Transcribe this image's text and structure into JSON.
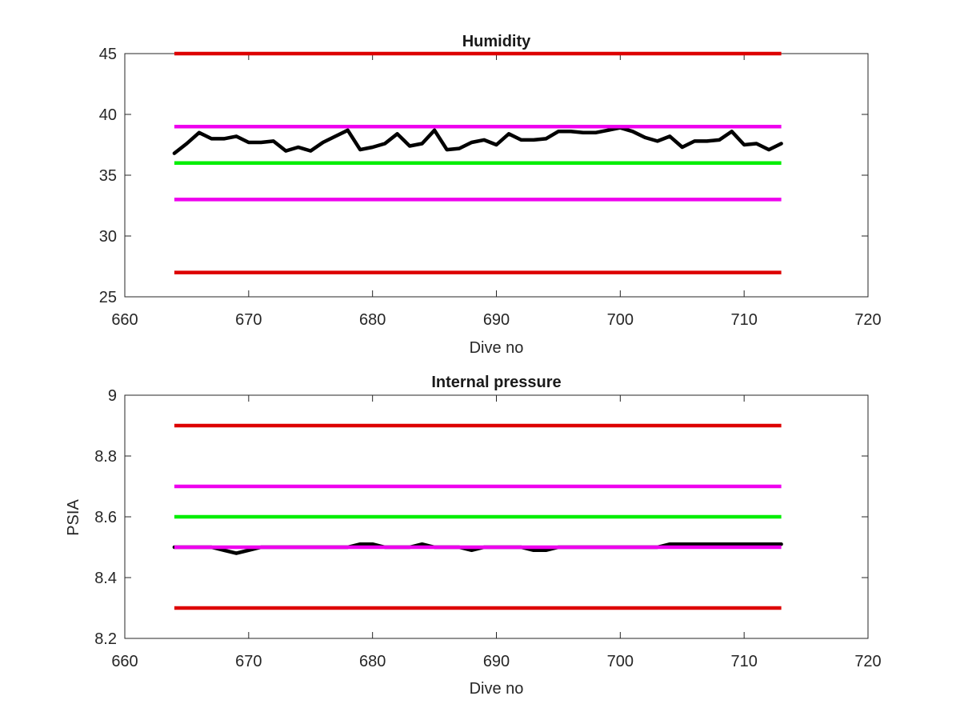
{
  "chart_data": [
    {
      "type": "line",
      "title": "Humidity",
      "xlabel": "Dive no",
      "ylabel": "",
      "xlim": [
        660,
        720
      ],
      "ylim": [
        25,
        45
      ],
      "xticks": [
        660,
        670,
        680,
        690,
        700,
        710,
        720
      ],
      "yticks": [
        25,
        30,
        35,
        40,
        45
      ],
      "grid": false,
      "legend": "none",
      "reference_lines": [
        {
          "value": 45,
          "x_range": [
            664,
            713
          ],
          "color": "#dd0000"
        },
        {
          "value": 39,
          "x_range": [
            664,
            713
          ],
          "color": "#ee00ee"
        },
        {
          "value": 36,
          "x_range": [
            664,
            713
          ],
          "color": "#00ee00"
        },
        {
          "value": 33,
          "x_range": [
            664,
            713
          ],
          "color": "#ee00ee"
        },
        {
          "value": 27,
          "x_range": [
            664,
            713
          ],
          "color": "#dd0000"
        }
      ],
      "series": [
        {
          "color": "#000000",
          "x": [
            664,
            665,
            666,
            667,
            668,
            669,
            670,
            671,
            672,
            673,
            674,
            675,
            676,
            677,
            678,
            679,
            680,
            681,
            682,
            683,
            684,
            685,
            686,
            687,
            688,
            689,
            690,
            691,
            692,
            693,
            694,
            695,
            696,
            697,
            698,
            699,
            700,
            701,
            702,
            703,
            704,
            705,
            706,
            707,
            708,
            709,
            710,
            711,
            712,
            713
          ],
          "y": [
            36.8,
            37.6,
            38.5,
            38.0,
            38.0,
            38.2,
            37.7,
            37.7,
            37.8,
            37.0,
            37.3,
            37.0,
            37.7,
            38.2,
            38.7,
            37.1,
            37.3,
            37.6,
            38.4,
            37.4,
            37.6,
            38.7,
            37.1,
            37.2,
            37.7,
            37.9,
            37.5,
            38.4,
            37.9,
            37.9,
            38.0,
            38.6,
            38.6,
            38.5,
            38.5,
            38.7,
            38.9,
            38.6,
            38.1,
            37.8,
            38.2,
            37.3,
            37.8,
            37.8,
            37.9,
            38.6,
            37.5,
            37.6,
            37.1,
            37.6
          ]
        }
      ]
    },
    {
      "type": "line",
      "title": "Internal pressure",
      "xlabel": "Dive no",
      "ylabel": "PSIA",
      "xlim": [
        660,
        720
      ],
      "ylim": [
        8.2,
        9
      ],
      "xticks": [
        660,
        670,
        680,
        690,
        700,
        710,
        720
      ],
      "yticks": [
        8.2,
        8.4,
        8.6,
        8.8,
        9
      ],
      "ytick_labels": [
        "8.2",
        "8.4",
        "8.6",
        "8.8",
        "9"
      ],
      "grid": false,
      "legend": "none",
      "reference_lines": [
        {
          "value": 8.9,
          "x_range": [
            664,
            713
          ],
          "color": "#dd0000"
        },
        {
          "value": 8.7,
          "x_range": [
            664,
            713
          ],
          "color": "#ee00ee"
        },
        {
          "value": 8.6,
          "x_range": [
            664,
            713
          ],
          "color": "#00ee00"
        },
        {
          "value": 8.5,
          "x_range": [
            664,
            713
          ],
          "color": "#ee00ee"
        },
        {
          "value": 8.3,
          "x_range": [
            664,
            713
          ],
          "color": "#dd0000"
        }
      ],
      "series": [
        {
          "color": "#000000",
          "x": [
            664,
            665,
            666,
            667,
            668,
            669,
            670,
            671,
            672,
            673,
            674,
            675,
            676,
            677,
            678,
            679,
            680,
            681,
            682,
            683,
            684,
            685,
            686,
            687,
            688,
            689,
            690,
            691,
            692,
            693,
            694,
            695,
            696,
            697,
            698,
            699,
            700,
            701,
            702,
            703,
            704,
            705,
            706,
            707,
            708,
            709,
            710,
            711,
            712,
            713
          ],
          "y": [
            8.5,
            8.5,
            8.5,
            8.5,
            8.49,
            8.48,
            8.49,
            8.5,
            8.5,
            8.5,
            8.5,
            8.5,
            8.5,
            8.5,
            8.5,
            8.51,
            8.51,
            8.5,
            8.5,
            8.5,
            8.51,
            8.5,
            8.5,
            8.5,
            8.49,
            8.5,
            8.5,
            8.5,
            8.5,
            8.49,
            8.49,
            8.5,
            8.5,
            8.5,
            8.5,
            8.5,
            8.5,
            8.5,
            8.5,
            8.5,
            8.51,
            8.51,
            8.51,
            8.51,
            8.51,
            8.51,
            8.51,
            8.51,
            8.51,
            8.51
          ]
        }
      ]
    }
  ]
}
